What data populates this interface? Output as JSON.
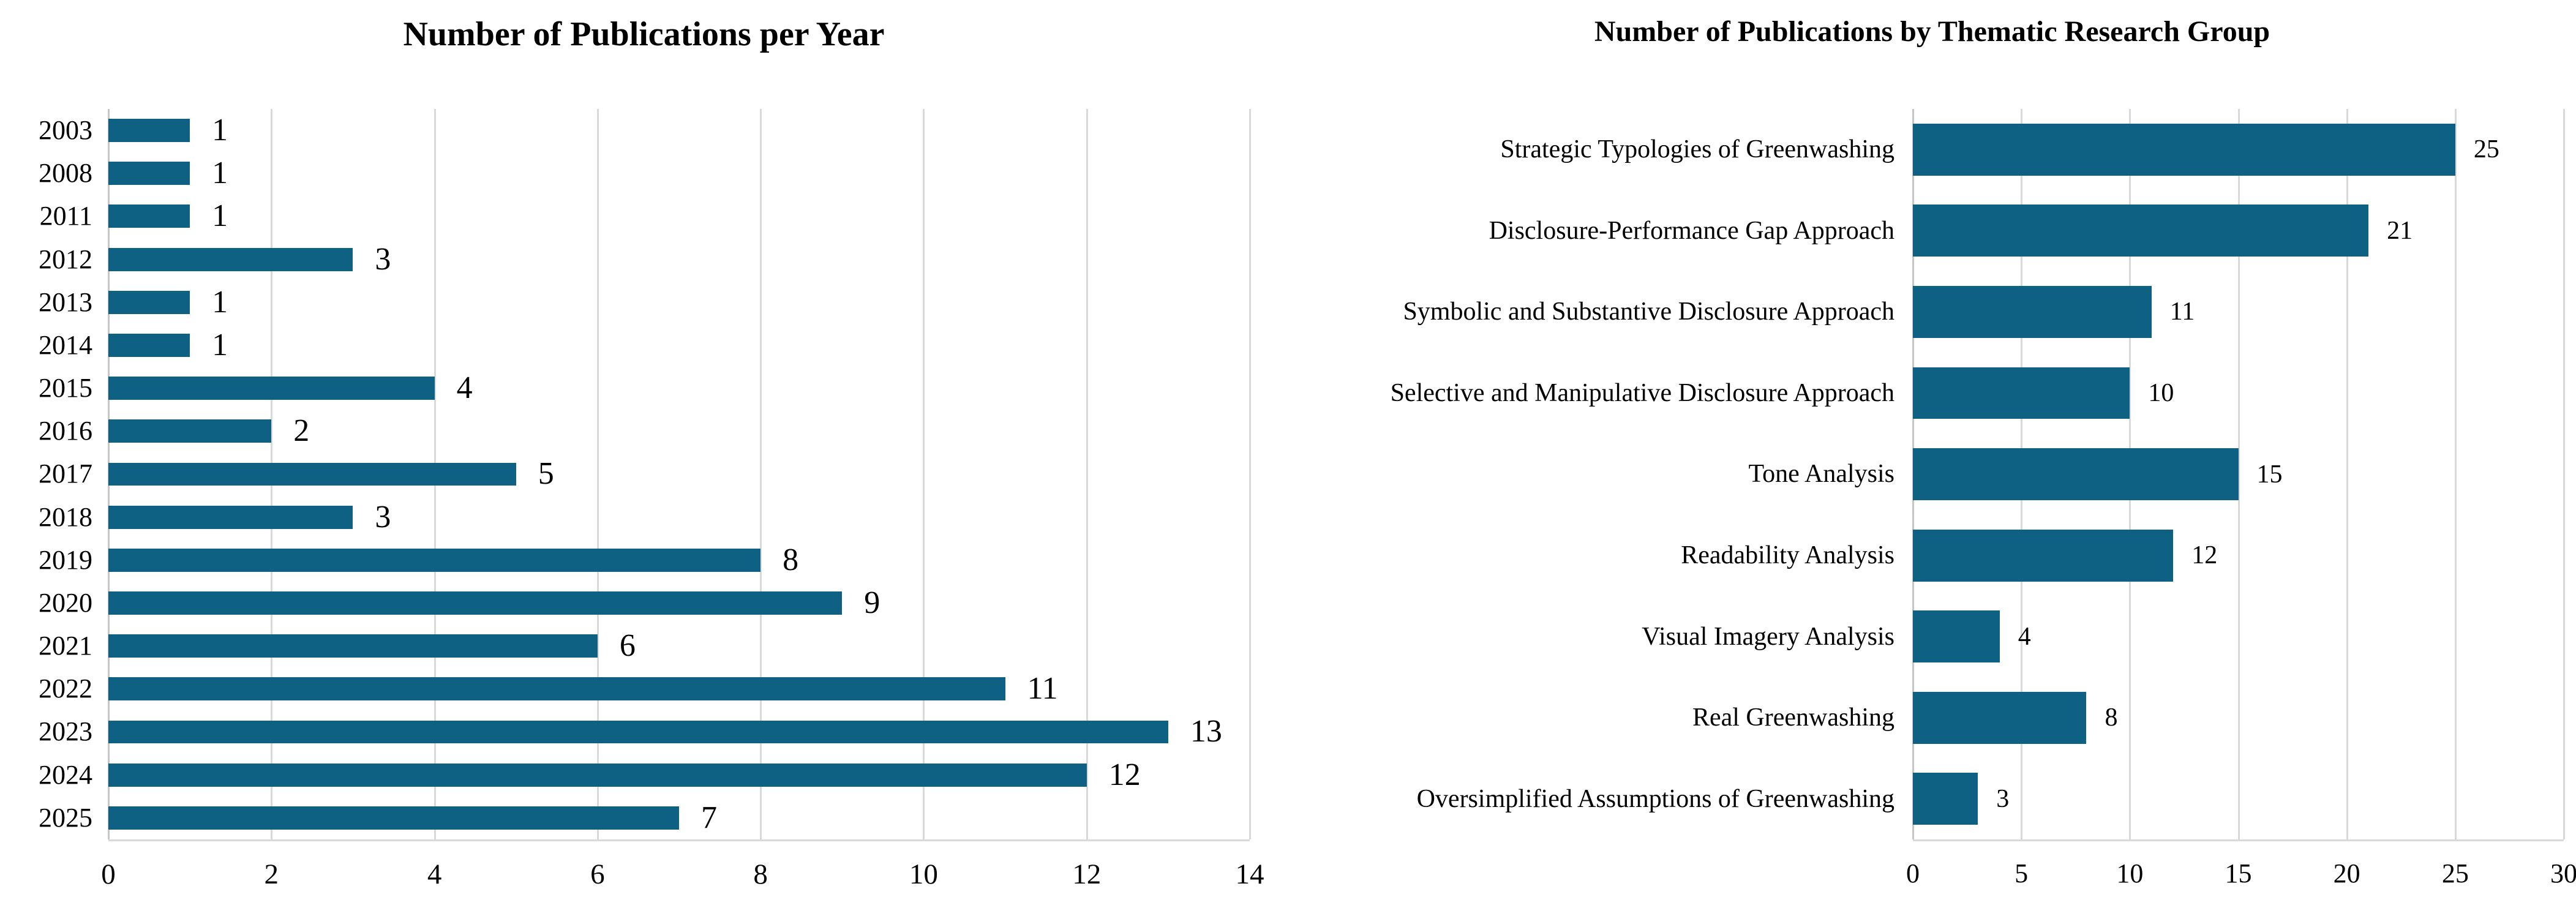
{
  "figure": {
    "description_left_title": "Number of Publications per Year",
    "description_right_title": "Number of Publications by Thematic Research Group"
  },
  "colors": {
    "bar": "#0e6183",
    "gridline": "#d9d9d9",
    "axis_line": "#c6c6c6",
    "text": "#000000",
    "background": "#ffffff"
  },
  "chart_data": [
    {
      "type": "bar",
      "orientation": "horizontal",
      "title": "Number of Publications per Year",
      "categories": [
        "2003",
        "2008",
        "2011",
        "2012",
        "2013",
        "2014",
        "2015",
        "2016",
        "2017",
        "2018",
        "2019",
        "2020",
        "2021",
        "2022",
        "2023",
        "2024",
        "2025"
      ],
      "values": [
        1,
        1,
        1,
        3,
        1,
        1,
        4,
        2,
        5,
        3,
        8,
        9,
        6,
        11,
        13,
        12,
        7
      ],
      "xlabel": "",
      "ylabel": "",
      "xlim": [
        0,
        14
      ],
      "xticks": [
        0,
        2,
        4,
        6,
        8,
        10,
        12,
        14
      ],
      "grid": "vertical-only",
      "legend": false,
      "data_labels": true
    },
    {
      "type": "bar",
      "orientation": "horizontal",
      "title": "Number of Publications by Thematic Research Group",
      "categories": [
        "Strategic Typologies of Greenwashing",
        "Disclosure-Performance Gap Approach",
        "Symbolic and Substantive Disclosure Approach",
        "Selective and Manipulative Disclosure Approach",
        "Tone Analysis",
        "Readability Analysis",
        "Visual Imagery Analysis",
        "Real Greenwashing",
        "Oversimplified Assumptions of Greenwashing"
      ],
      "values": [
        25,
        21,
        11,
        10,
        15,
        12,
        4,
        8,
        3
      ],
      "xlabel": "",
      "ylabel": "",
      "xlim": [
        0,
        30
      ],
      "xticks": [
        0,
        5,
        10,
        15,
        20,
        25,
        30
      ],
      "grid": "vertical-only",
      "legend": false,
      "data_labels": true
    }
  ]
}
